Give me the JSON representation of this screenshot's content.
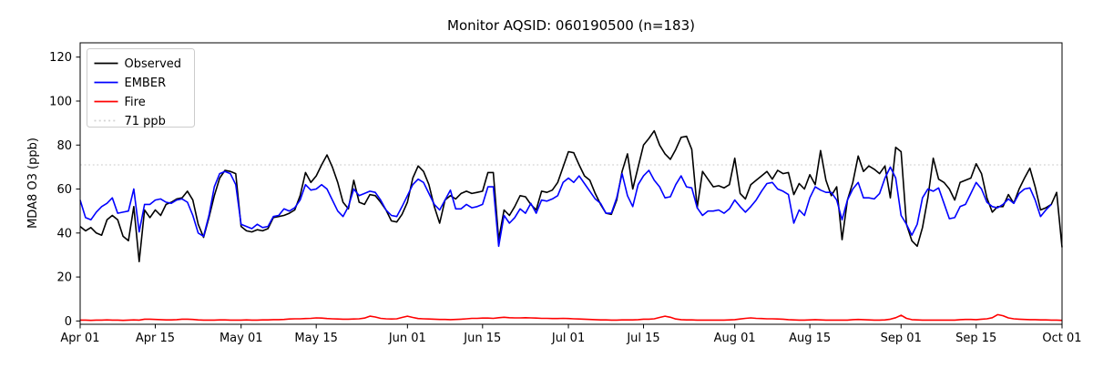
{
  "figure": {
    "title": "Monitor AQSID: 060190500 (n=183)",
    "ylabel": "MDA8 O3 (ppb)"
  },
  "chart_data": {
    "type": "line",
    "title": "Monitor AQSID: 060190500 (n=183)",
    "xlabel": "",
    "ylabel": "MDA8 O3 (ppb)",
    "x_unit": "days since Apr 01 (daily cadence)",
    "xlim_days": [
      0,
      183
    ],
    "ylim": [
      -1.5,
      126.5
    ],
    "grid": false,
    "legend_position": "upper left",
    "x_tick_days": [
      0,
      14,
      30,
      44,
      61,
      75,
      91,
      105,
      122,
      136,
      153,
      167,
      183
    ],
    "x_tick_labels": [
      "Apr 01",
      "Apr 15",
      "May 01",
      "May 15",
      "Jun 01",
      "Jun 15",
      "Jul 01",
      "Jul 15",
      "Aug 01",
      "Aug 15",
      "Sep 01",
      "Sep 15",
      "Oct 01"
    ],
    "y_ticks": [
      0,
      20,
      40,
      60,
      80,
      100,
      120
    ],
    "threshold": {
      "label": "71 ppb",
      "value": 71,
      "color": "#d3d3d3",
      "style": "dotted"
    },
    "legend": [
      {
        "label": "Observed",
        "color": "#000000",
        "dash": "solid"
      },
      {
        "label": "EMBER",
        "color": "#0000ff",
        "dash": "solid"
      },
      {
        "label": "Fire",
        "color": "#ff0000",
        "dash": "solid"
      },
      {
        "label": "71 ppb",
        "color": "#d3d3d3",
        "dash": "dotted"
      }
    ],
    "series": [
      {
        "name": "Observed",
        "color": "#000000",
        "start_day": 0,
        "values": [
          43,
          41,
          42.5,
          40,
          39,
          46,
          48,
          46,
          38.5,
          36.5,
          52,
          27,
          50.5,
          47,
          50.5,
          48,
          53,
          54,
          55.5,
          56,
          59,
          55,
          44,
          38,
          47,
          57,
          65,
          68.5,
          68,
          67,
          43,
          41,
          40.5,
          41.5,
          41,
          42,
          47,
          47.5,
          48,
          49,
          50.5,
          57,
          67.5,
          63,
          66,
          71,
          75.5,
          70,
          63,
          54,
          51,
          64,
          54,
          53,
          57.5,
          57,
          54,
          50.5,
          45.5,
          45,
          48.5,
          54,
          65,
          70.5,
          68,
          62,
          52,
          44.5,
          55,
          57,
          55.5,
          58,
          59,
          58,
          58.5,
          59,
          67.5,
          67.5,
          37,
          50.5,
          48,
          52,
          57,
          56.5,
          53,
          50.5,
          59,
          58.5,
          59.5,
          63,
          70,
          77,
          76.5,
          71,
          66,
          64,
          58,
          53,
          49,
          48.5,
          55,
          68,
          76,
          60,
          70,
          80,
          83,
          86.5,
          80,
          76,
          73.5,
          78,
          83.5,
          84,
          78,
          51.5,
          68,
          64.5,
          61,
          61.5,
          60.5,
          62,
          74,
          58,
          55.5,
          62,
          64,
          66,
          68,
          64.5,
          68.5,
          67,
          67.5,
          57.5,
          62.5,
          60,
          66.5,
          62,
          77.5,
          64,
          57,
          61,
          37,
          55,
          63,
          75,
          68,
          70.5,
          69,
          67,
          70.5,
          56,
          79,
          77,
          44,
          36.5,
          34,
          42.5,
          56,
          74,
          64.5,
          63,
          60,
          55,
          63,
          64,
          65,
          71.5,
          67,
          56,
          49.5,
          52,
          52,
          57.5,
          53.5,
          60,
          65,
          69.5,
          61,
          50.5,
          51.5,
          53,
          58.5,
          33.5
        ]
      },
      {
        "name": "EMBER",
        "color": "#0000ff",
        "start_day": 0,
        "values": [
          55,
          47,
          46,
          49.5,
          52,
          53.5,
          56,
          49,
          49.5,
          50,
          60,
          40.5,
          53,
          53,
          55,
          55.5,
          54,
          53.5,
          55,
          55.5,
          54,
          48,
          40,
          38.5,
          48,
          61,
          67,
          68,
          67,
          62,
          44,
          43,
          42,
          44,
          42.5,
          43,
          47.5,
          48,
          51,
          50,
          51.5,
          55,
          62,
          59.5,
          60,
          62,
          60,
          55,
          50,
          47.5,
          52,
          60,
          57,
          58,
          59,
          58.5,
          55,
          50.5,
          48,
          47.5,
          52,
          57,
          62,
          64.5,
          63,
          58,
          53,
          50.5,
          55,
          59.5,
          51,
          51,
          53,
          51.5,
          52,
          53,
          61,
          61,
          34,
          48,
          44.5,
          47,
          51,
          49,
          53.5,
          49,
          55,
          54.5,
          55.5,
          57,
          63,
          65,
          63,
          66,
          62.5,
          59,
          55.5,
          53.5,
          49,
          49,
          56,
          67,
          57,
          52,
          62,
          66,
          68.5,
          64,
          61,
          56,
          56.5,
          62,
          66,
          61,
          60.5,
          51.5,
          48,
          50,
          50,
          50.5,
          49,
          51,
          55,
          52,
          49.5,
          52,
          55,
          59,
          62.5,
          63,
          60,
          59,
          57.5,
          44.5,
          50.5,
          48,
          56,
          61,
          59.5,
          58.5,
          58.5,
          55,
          46,
          55,
          60,
          63,
          56,
          56,
          55.5,
          58,
          65,
          70,
          65,
          48,
          44,
          39,
          44,
          56,
          60,
          59,
          60.5,
          53.5,
          46.5,
          47,
          52,
          53,
          58,
          63,
          60,
          54,
          52,
          51.5,
          53,
          55.5,
          53.5,
          58,
          60,
          60.5,
          55,
          47.5,
          50.5,
          53
        ]
      },
      {
        "name": "Fire",
        "color": "#ff0000",
        "start_day": 0,
        "values": [
          0.4,
          0.4,
          0.3,
          0.4,
          0.4,
          0.5,
          0.4,
          0.4,
          0.3,
          0.4,
          0.5,
          0.4,
          0.8,
          0.8,
          0.7,
          0.6,
          0.5,
          0.5,
          0.6,
          0.8,
          0.8,
          0.7,
          0.5,
          0.4,
          0.4,
          0.4,
          0.5,
          0.5,
          0.4,
          0.4,
          0.4,
          0.5,
          0.4,
          0.4,
          0.5,
          0.5,
          0.6,
          0.6,
          0.7,
          0.9,
          1.0,
          1.0,
          1.1,
          1.2,
          1.4,
          1.3,
          1.1,
          1.0,
          0.9,
          0.8,
          0.8,
          0.9,
          1.0,
          1.3,
          2.2,
          1.8,
          1.2,
          1.0,
          0.9,
          1.0,
          1.6,
          2.2,
          1.6,
          1.1,
          1.0,
          0.9,
          0.8,
          0.7,
          0.7,
          0.6,
          0.7,
          0.8,
          1.0,
          1.2,
          1.2,
          1.3,
          1.3,
          1.2,
          1.5,
          1.7,
          1.5,
          1.4,
          1.4,
          1.5,
          1.4,
          1.3,
          1.2,
          1.2,
          1.1,
          1.1,
          1.2,
          1.1,
          1.0,
          0.9,
          0.8,
          0.7,
          0.6,
          0.5,
          0.5,
          0.4,
          0.4,
          0.5,
          0.5,
          0.5,
          0.6,
          0.8,
          0.8,
          1.0,
          1.6,
          2.2,
          1.7,
          0.9,
          0.6,
          0.5,
          0.5,
          0.4,
          0.4,
          0.4,
          0.4,
          0.4,
          0.4,
          0.5,
          0.6,
          0.9,
          1.2,
          1.4,
          1.2,
          1.1,
          1.0,
          1.0,
          0.9,
          0.8,
          0.6,
          0.5,
          0.4,
          0.4,
          0.5,
          0.6,
          0.5,
          0.4,
          0.4,
          0.4,
          0.4,
          0.4,
          0.6,
          0.7,
          0.6,
          0.5,
          0.4,
          0.4,
          0.5,
          0.8,
          1.5,
          2.6,
          1.2,
          0.6,
          0.5,
          0.4,
          0.4,
          0.4,
          0.4,
          0.4,
          0.4,
          0.4,
          0.6,
          0.7,
          0.7,
          0.6,
          0.8,
          1.0,
          1.5,
          2.9,
          2.4,
          1.4,
          1.0,
          0.8,
          0.7,
          0.6,
          0.6,
          0.5,
          0.5,
          0.4,
          0.4,
          0.3
        ]
      }
    ]
  }
}
